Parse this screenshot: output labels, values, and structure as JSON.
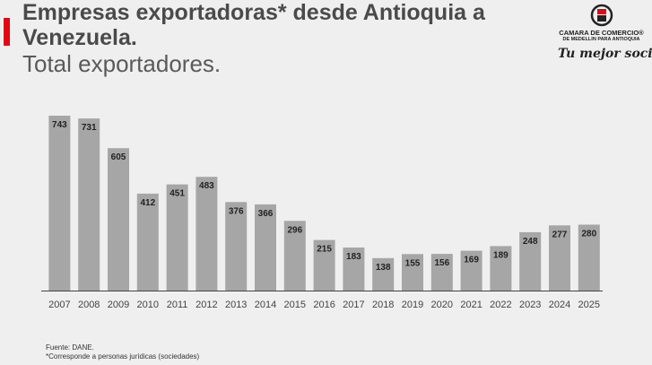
{
  "title": "Empresas exportadoras* desde Antioquia a Venezuela.",
  "subtitle": "Total exportadores.",
  "logo": {
    "line1": "CAMARA DE COMERCIO®",
    "line2": "DE MEDELLIN PARA ANTIOQUIA",
    "tagline": "Tu mejor socio",
    "accent_color": "#e30613"
  },
  "source": "Fuente: DANE.",
  "footnote": "*Corresponde a personas jurídicas (sociedades)",
  "colors": {
    "bar": "#a6a6a6",
    "label": "#222222",
    "axis": "#444444"
  },
  "chart_data": {
    "type": "bar",
    "title": "Empresas exportadoras* desde Antioquia a Venezuela.",
    "subtitle": "Total exportadores.",
    "xlabel": "",
    "ylabel": "",
    "categories": [
      "2007",
      "2008",
      "2009",
      "2010",
      "2011",
      "2012",
      "2013",
      "2014",
      "2015",
      "2016",
      "2017",
      "2018",
      "2019",
      "2020",
      "2021",
      "2022",
      "2023",
      "2024",
      "2025"
    ],
    "values": [
      743,
      731,
      605,
      412,
      451,
      483,
      376,
      366,
      296,
      215,
      183,
      138,
      155,
      156,
      169,
      189,
      248,
      277,
      280
    ],
    "ylim": [
      0,
      743
    ],
    "grid": false,
    "legend": "none"
  }
}
